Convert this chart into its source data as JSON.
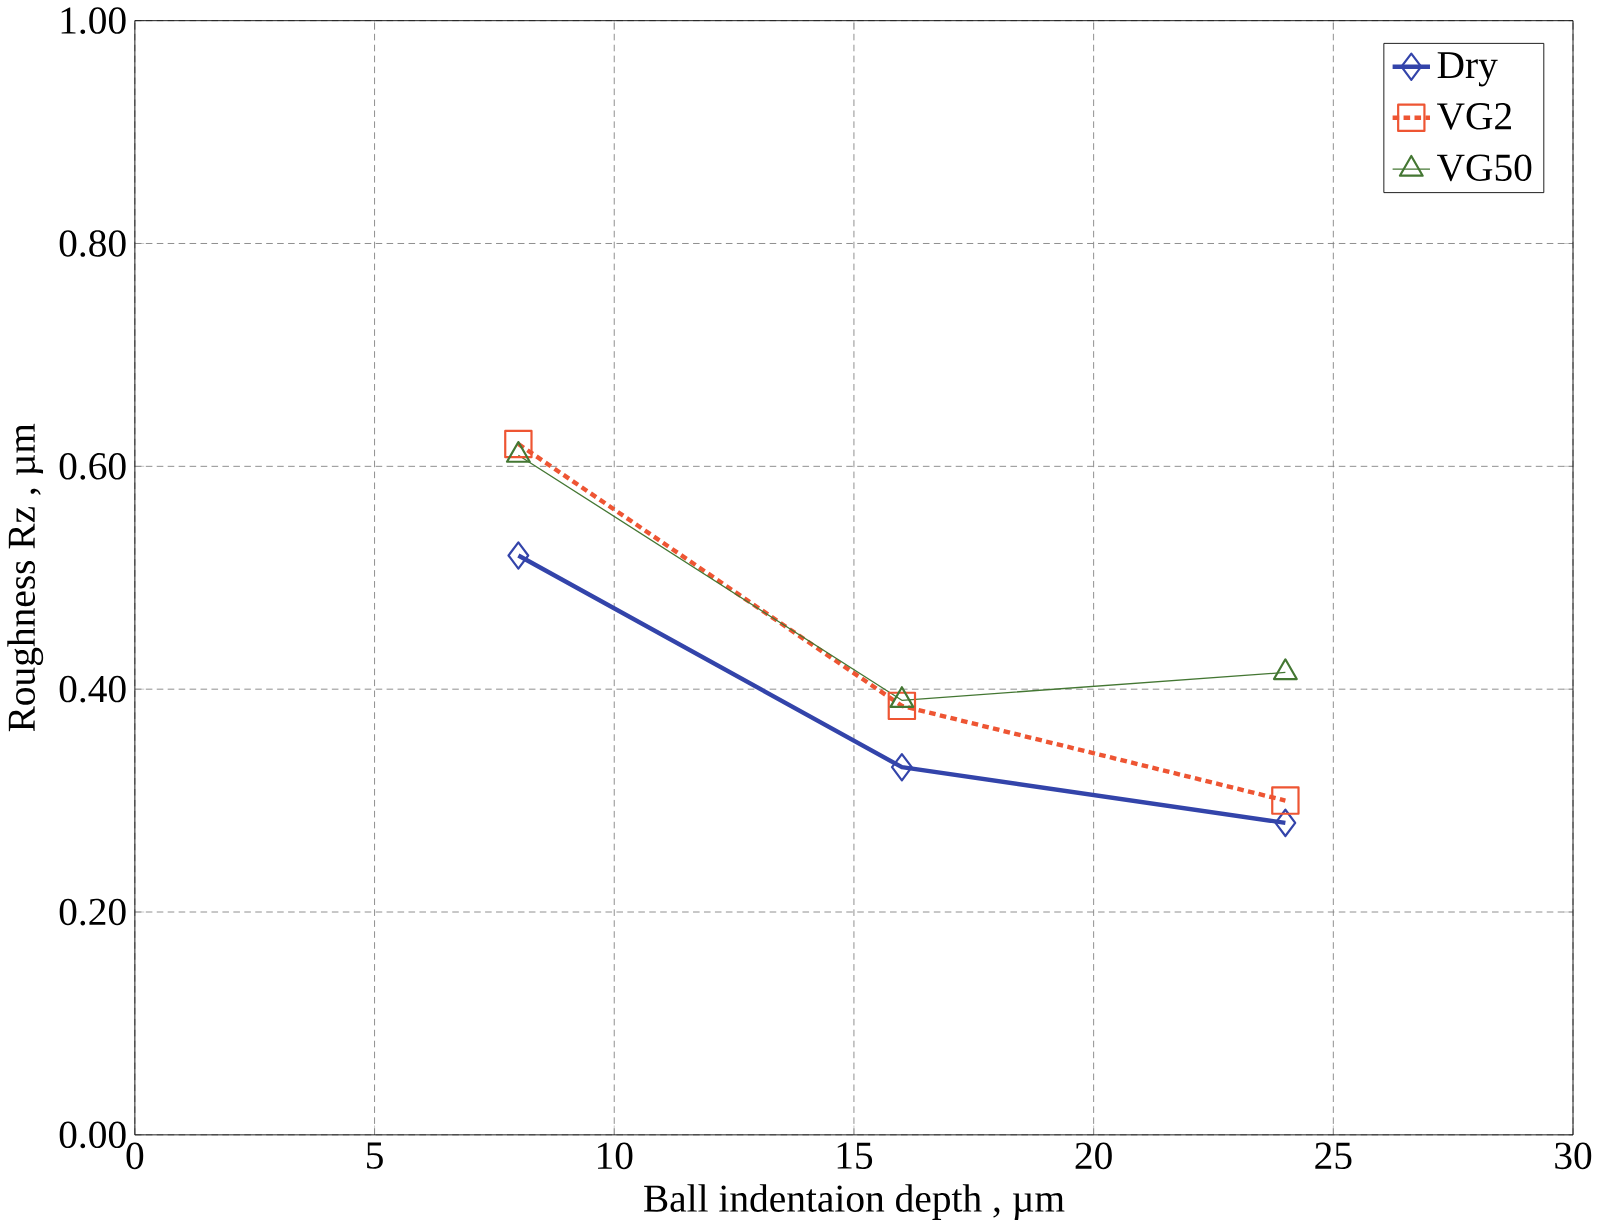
{
  "chart_data": {
    "type": "line",
    "xlabel": "Ball indentaion depth , µm",
    "ylabel": "Roughness Rz , µm",
    "x": [
      8,
      16,
      24
    ],
    "series": [
      {
        "name": "Dry",
        "color": "#3344aa",
        "values": [
          0.52,
          0.33,
          0.28
        ],
        "marker": "diamond",
        "line_style": "solid"
      },
      {
        "name": "VG2",
        "color": "#ee5533",
        "values": [
          0.62,
          0.385,
          0.3
        ],
        "marker": "square",
        "line_style": "dotted"
      },
      {
        "name": "VG50",
        "color": "#447733",
        "values": [
          0.61,
          0.39,
          0.415
        ],
        "marker": "triangle",
        "line_style": "solid"
      }
    ],
    "xlim": [
      0,
      30
    ],
    "xticks": [
      0,
      5,
      10,
      15,
      20,
      25,
      30
    ],
    "ylim": [
      0,
      1
    ],
    "yticks": [
      {
        "value": 0,
        "label": "0.00"
      },
      {
        "value": 0.2,
        "label": "0.20"
      },
      {
        "value": 0.4,
        "label": "0.40"
      },
      {
        "value": 0.6,
        "label": "0.60"
      },
      {
        "value": 0.8,
        "label": "0.80"
      },
      {
        "value": 1,
        "label": "1.00"
      }
    ],
    "grid": true,
    "legend": "top right"
  }
}
